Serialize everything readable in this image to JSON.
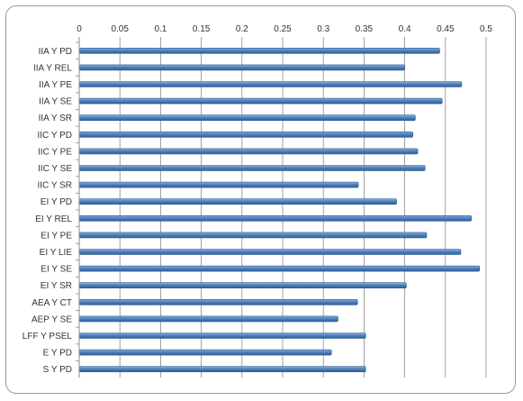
{
  "chart_data": {
    "type": "bar",
    "orientation": "horizontal",
    "title": "",
    "xlabel": "",
    "ylabel": "",
    "x_axis_position": "top",
    "xlim": [
      0,
      0.5
    ],
    "x_ticks": [
      "0",
      "0.05",
      "0.1",
      "0.15",
      "0.2",
      "0.25",
      "0.3",
      "0.35",
      "0.4",
      "0.45",
      "0.5"
    ],
    "grid": true,
    "legend": "none",
    "bar_color": "#4f81bd",
    "categories": [
      "IIA Y PD",
      "IIA Y REL",
      "IIA Y PE",
      "IIA Y SE",
      "IIA Y SR",
      "IIC Y PD",
      "IIC Y PE",
      "IIC Y SE",
      "IIC Y SR",
      "EI Y PD",
      "EI Y REL",
      "EI Y PE",
      "EI Y LIE",
      "EI Y SE",
      "EI Y SR",
      "AEA Y CT",
      "AEP Y SE",
      "LFF Y PSEL",
      "E Y PD",
      "S Y PD"
    ],
    "values": [
      0.443,
      0.4,
      0.47,
      0.446,
      0.413,
      0.41,
      0.416,
      0.425,
      0.343,
      0.39,
      0.482,
      0.427,
      0.469,
      0.492,
      0.402,
      0.342,
      0.318,
      0.352,
      0.31,
      0.352
    ]
  }
}
